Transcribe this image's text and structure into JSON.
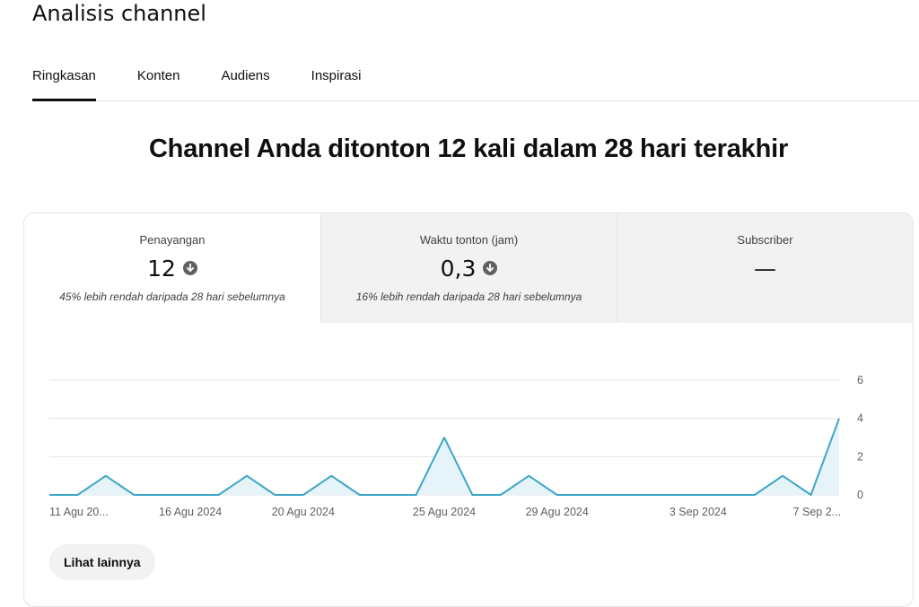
{
  "page": {
    "title": "Analisis channel"
  },
  "tabs": [
    {
      "label": "Ringkasan",
      "active": true
    },
    {
      "label": "Konten",
      "active": false
    },
    {
      "label": "Audiens",
      "active": false
    },
    {
      "label": "Inspirasi",
      "active": false
    }
  ],
  "headline": "Channel Anda ditonton 12 kali dalam 28 hari terakhir",
  "metrics": [
    {
      "label": "Penayangan",
      "value": "12",
      "trend_icon": "arrow-down-circle-icon",
      "change": "45% lebih rendah daripada 28 hari sebelumnya"
    },
    {
      "label": "Waktu tonton (jam)",
      "value": "0,3",
      "trend_icon": "arrow-down-circle-icon",
      "change": "16% lebih rendah daripada 28 hari sebelumnya"
    },
    {
      "label": "Subscriber",
      "value": "—",
      "change": ""
    }
  ],
  "colors": {
    "line": "#3ea6c6",
    "area": "#e6f3f8",
    "grid": "#e5e5e5",
    "icon": "#606060"
  },
  "chart_data": {
    "type": "area",
    "title": "",
    "xlabel": "",
    "ylabel": "",
    "ylim": [
      0,
      6
    ],
    "yticks": [
      "0",
      "2",
      "4",
      "6"
    ],
    "xtick_labels": [
      "11 Agu 20...",
      "16 Agu 2024",
      "20 Agu 2024",
      "25 Agu 2024",
      "29 Agu 2024",
      "3 Sep 2024",
      "7 Sep 2..."
    ],
    "x": [
      "11 Agu 2024",
      "12 Agu 2024",
      "13 Agu 2024",
      "14 Agu 2024",
      "15 Agu 2024",
      "16 Agu 2024",
      "17 Agu 2024",
      "18 Agu 2024",
      "19 Agu 2024",
      "20 Agu 2024",
      "21 Agu 2024",
      "22 Agu 2024",
      "23 Agu 2024",
      "24 Agu 2024",
      "25 Agu 2024",
      "26 Agu 2024",
      "27 Agu 2024",
      "28 Agu 2024",
      "29 Agu 2024",
      "30 Agu 2024",
      "31 Agu 2024",
      "1 Sep 2024",
      "2 Sep 2024",
      "3 Sep 2024",
      "4 Sep 2024",
      "5 Sep 2024",
      "6 Sep 2024",
      "7 Sep 2024",
      "8 Sep 2024"
    ],
    "series": [
      {
        "values": [
          0,
          0,
          1,
          0,
          0,
          0,
          0,
          1,
          0,
          0,
          1,
          0,
          0,
          0,
          3,
          0,
          0,
          1,
          0,
          0,
          0,
          0,
          0,
          0,
          0,
          0,
          1,
          0,
          4
        ]
      }
    ],
    "grid": true,
    "axis_side": "right"
  },
  "more_button": {
    "label": "Lihat lainnya"
  }
}
